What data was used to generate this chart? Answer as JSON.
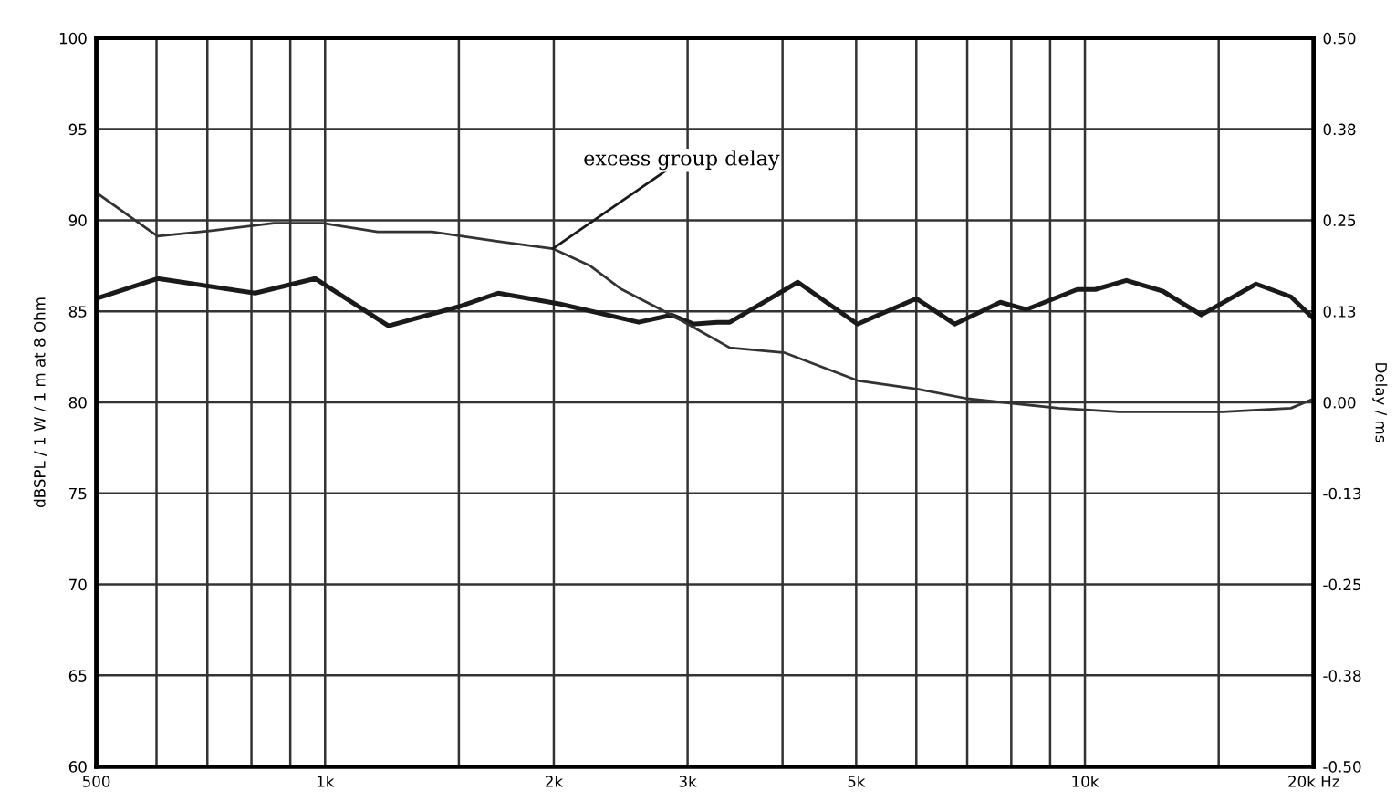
{
  "chart_data": {
    "type": "line",
    "xlabel": null,
    "ylabel": "dBSPL / 1 W / 1 m at 8 Ohm",
    "y2label": "Delay / ms",
    "log": "x",
    "xlim": [
      500,
      20000
    ],
    "xticks": [
      500,
      {
        "value": 600,
        "label": null
      },
      {
        "value": 700,
        "label": null
      },
      {
        "value": 800,
        "label": null
      },
      {
        "value": 900,
        "label": null
      },
      {
        "value": 1000,
        "label": "1k"
      },
      {
        "value": 1500,
        "label": null
      },
      {
        "value": 2000,
        "label": "2k"
      },
      {
        "value": 3000,
        "label": "3k"
      },
      {
        "value": 4000,
        "label": null
      },
      {
        "value": 5000,
        "label": "5k"
      },
      {
        "value": 6000,
        "label": null
      },
      {
        "value": 7000,
        "label": null
      },
      {
        "value": 8000,
        "label": null
      },
      {
        "value": 9000,
        "label": null
      },
      {
        "value": 10000,
        "label": "10k"
      },
      {
        "value": 15000,
        "label": null
      },
      {
        "value": 20000,
        "label": "20k Hz"
      }
    ],
    "ylim": [
      60,
      100
    ],
    "yticks": [
      60,
      65,
      70,
      75,
      80,
      85,
      90,
      95,
      100
    ],
    "y2lim": [
      -0.5,
      0.5
    ],
    "y2ticks": [
      {
        "value": -0.5,
        "label": "-0.50"
      },
      {
        "value": -0.375,
        "label": "-0.38"
      },
      {
        "value": -0.25,
        "label": "-0.25"
      },
      {
        "value": -0.125,
        "label": "-0.13"
      },
      {
        "value": 0,
        "label": "0.00"
      },
      {
        "value": 0.125,
        "label": "0.13"
      },
      {
        "value": 0.25,
        "label": "0.25"
      },
      {
        "value": 0.375,
        "label": "0.38"
      },
      {
        "value": 0.5,
        "label": "0.50"
      }
    ],
    "grid": true,
    "marker": "none",
    "line_style": "solid",
    "series": [
      {
        "color": "#1a1a1a",
        "x": [
          500,
          602,
          809,
          971,
          1212,
          1512,
          1690,
          2040,
          2587,
          2858,
          3054,
          3280,
          3410,
          4190,
          5020,
          6000,
          6740,
          7740,
          8370,
          9770,
          10320,
          11340,
          12670,
          14230,
          16800,
          18670,
          20000
        ],
        "values": [
          85.7,
          86.8,
          86.0,
          86.8,
          84.2,
          85.3,
          86.0,
          85.4,
          84.4,
          84.8,
          84.3,
          84.4,
          84.4,
          86.6,
          84.3,
          85.7,
          84.3,
          85.5,
          85.1,
          86.2,
          86.2,
          86.7,
          86.1,
          84.8,
          86.5,
          85.8,
          84.6
        ]
      },
      {
        "name": "excess group delay",
        "color": "#333333",
        "axis": "y2",
        "x": [
          500,
          602,
          713,
          856,
          993,
          1172,
          1383,
          1690,
          1994,
          2229,
          2449,
          2858,
          3410,
          4030,
          5020,
          6040,
          7010,
          9240,
          11090,
          15210,
          18670,
          20000
        ],
        "values": [
          0.288,
          0.228,
          0.236,
          0.246,
          0.246,
          0.234,
          0.234,
          0.221,
          0.211,
          0.188,
          0.156,
          0.12,
          0.075,
          0.068,
          0.03,
          0.018,
          0.005,
          -0.008,
          -0.013,
          -0.013,
          -0.008,
          0.005
        ]
      }
    ]
  }
}
